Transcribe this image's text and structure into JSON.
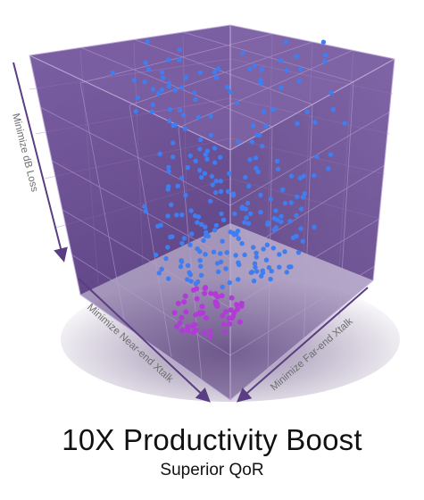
{
  "diagram": {
    "axes": {
      "vertical": "Minimize dB Loss",
      "near_end": "Minimize Near-end Xtalk",
      "far_end": "Minimize Far-end Xtalk"
    },
    "colors": {
      "cube_fill": "#6a4c93",
      "cube_dark": "#4a2f6e",
      "grid_line": "#a58cc6",
      "axis_arrow": "#5a3d82",
      "dot_blue": "#3f7df0",
      "dot_magenta": "#b23ad6"
    }
  },
  "headline": "10X Productivity Boost",
  "subheadline": "Superior QoR"
}
